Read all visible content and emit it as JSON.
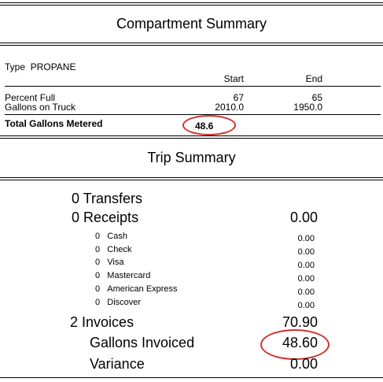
{
  "compartment": {
    "title": "Compartment Summary",
    "type_label": "Type",
    "type_value": "PROPANE",
    "start_header": "Start",
    "end_header": "End",
    "rows": [
      {
        "label": "Percent Full",
        "start": "67",
        "end": "65"
      },
      {
        "label": "Gallons on Truck",
        "start": "2010.0",
        "end": "1950.0"
      }
    ],
    "total_label": "Total Gallons Metered",
    "total_value": "48.6"
  },
  "trip": {
    "title": "Trip Summary",
    "transfers": {
      "count": "0",
      "label": "Transfers"
    },
    "receipts": {
      "count": "0",
      "label": "Receipts",
      "amount": "0.00"
    },
    "payments": [
      {
        "count": "0",
        "label": "Cash",
        "amount": "0.00"
      },
      {
        "count": "0",
        "label": "Check",
        "amount": "0.00"
      },
      {
        "count": "0",
        "label": "Visa",
        "amount": "0.00"
      },
      {
        "count": "0",
        "label": "Mastercard",
        "amount": "0.00"
      },
      {
        "count": "0",
        "label": "American Express",
        "amount": "0.00"
      },
      {
        "count": "0",
        "label": "Discover",
        "amount": "0.00"
      }
    ],
    "invoices": {
      "count": "2",
      "label": "Invoices",
      "amount": "70.90"
    },
    "gallons_invoiced": {
      "label": "Gallons Invoiced",
      "amount": "48.60"
    },
    "variance": {
      "label": "Variance",
      "amount": "0.00"
    }
  },
  "colors": {
    "highlight": "#d0312d"
  }
}
